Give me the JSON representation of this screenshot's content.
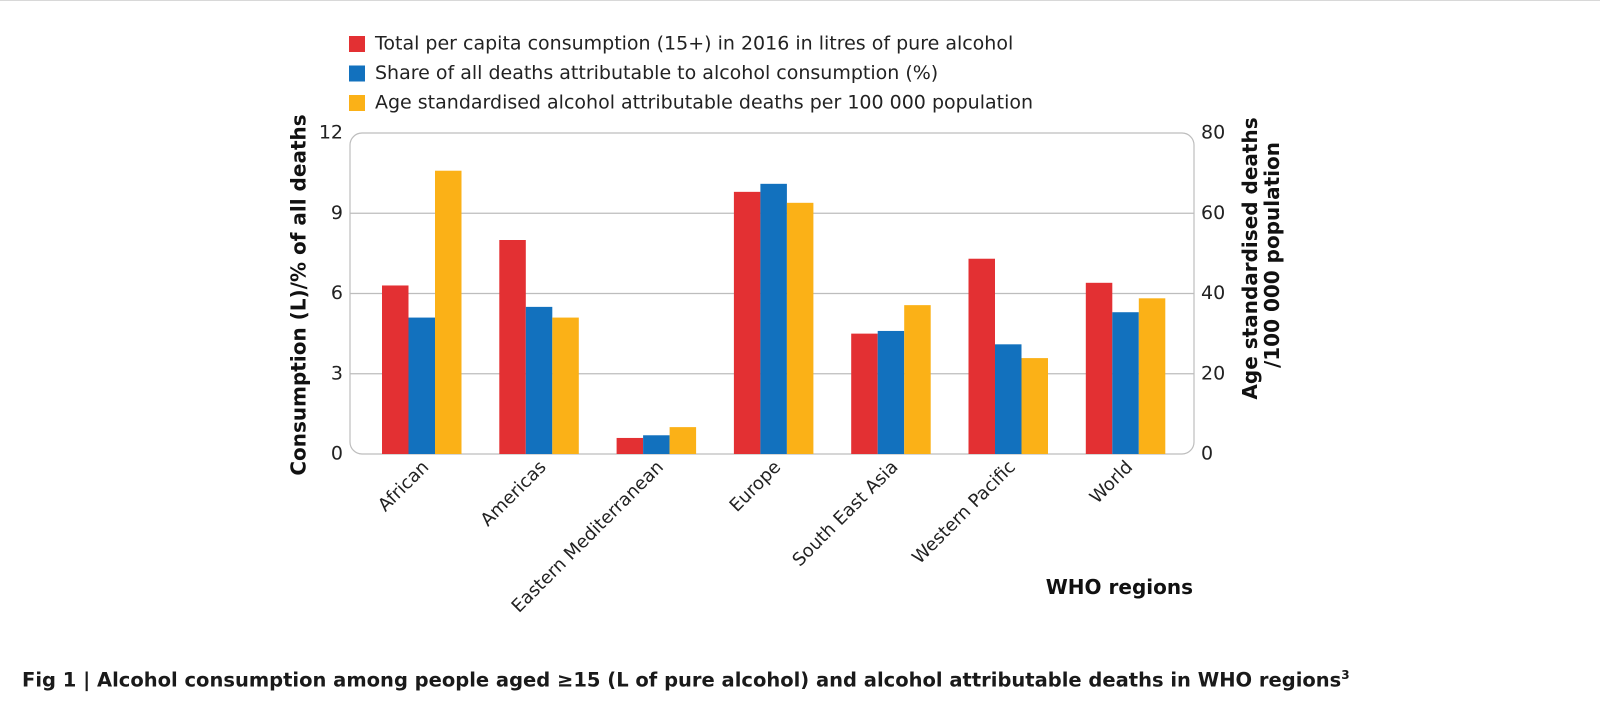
{
  "chart_data": {
    "type": "bar",
    "categories": [
      "African",
      "Americas",
      "Eastern Mediterranean",
      "Europe",
      "South East Asia",
      "Western Pacific",
      "World"
    ],
    "series": [
      {
        "name": "Total per capita consumption (15+) in 2016 in litres of pure alcohol",
        "axis": "left",
        "color": "#e33033",
        "values": [
          6.3,
          8.0,
          0.6,
          9.8,
          4.5,
          7.3,
          6.4
        ]
      },
      {
        "name": "Share of all deaths attributable to alcohol consumption (%)",
        "axis": "left",
        "color": "#1271be",
        "values": [
          5.1,
          5.5,
          0.7,
          10.1,
          4.6,
          4.1,
          5.3
        ]
      },
      {
        "name": "Age standardised alcohol attributable deaths per 100 000 population",
        "axis": "right",
        "color": "#fbb117",
        "values": [
          70.6,
          34.0,
          6.7,
          62.6,
          37.1,
          23.9,
          38.8
        ]
      }
    ],
    "y_left": {
      "label": "Consumption (L)/% of all deaths",
      "ylim": [
        0,
        12
      ],
      "ticks": [
        "0",
        "3",
        "6",
        "9",
        "12"
      ]
    },
    "y_right": {
      "label_lines": [
        "Age standardised deaths",
        "/100 000 population"
      ],
      "ylim": [
        0,
        80
      ],
      "ticks": [
        "0",
        "20",
        "40",
        "60",
        "80"
      ]
    },
    "xlabel": "WHO regions",
    "grid": true,
    "legend_position": "top"
  },
  "caption": {
    "text": "Fig 1 | Alcohol consumption among people aged ≥15 (L of pure alcohol) and alcohol attributable deaths in WHO regions",
    "superscript": "3"
  }
}
